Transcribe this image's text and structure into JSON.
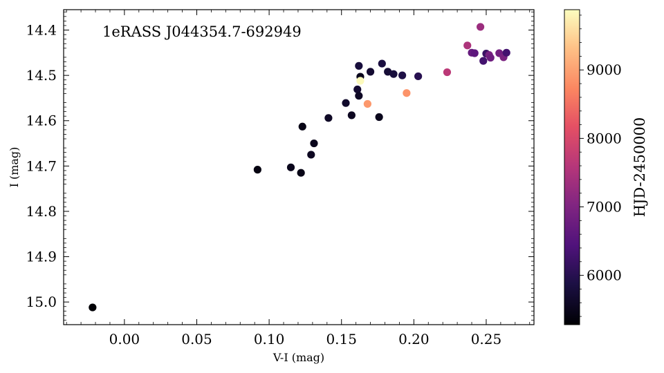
{
  "chart_data": {
    "type": "scatter",
    "title": "",
    "annotation": "1eRASS J044354.7-692949",
    "xlabel": "V-I (mag)",
    "ylabel": "I (mag)",
    "xlim": [
      -0.042,
      0.283
    ],
    "ylim": [
      15.05,
      14.355
    ],
    "y_inverted": true,
    "x_ticks": [
      0.0,
      0.05,
      0.1,
      0.15,
      0.2,
      0.25
    ],
    "x_tick_labels": [
      "0.00",
      "0.05",
      "0.10",
      "0.15",
      "0.20",
      "0.25"
    ],
    "y_ticks": [
      14.4,
      14.5,
      14.6,
      14.7,
      14.8,
      14.9,
      15.0
    ],
    "y_tick_labels": [
      "14.4",
      "14.5",
      "14.6",
      "14.7",
      "14.8",
      "14.9",
      "15.0"
    ],
    "grid": false,
    "colorbar": {
      "label": "HJD-2450000",
      "colormap": "magma",
      "range": [
        5280,
        9880
      ],
      "ticks": [
        6000,
        7000,
        8000,
        9000
      ],
      "tick_labels": [
        "6000",
        "7000",
        "8000",
        "9000"
      ]
    },
    "points": [
      {
        "x": -0.022,
        "y": 15.012,
        "c": 5300
      },
      {
        "x": 0.092,
        "y": 14.708,
        "c": 5400
      },
      {
        "x": 0.115,
        "y": 14.703,
        "c": 5500
      },
      {
        "x": 0.122,
        "y": 14.715,
        "c": 5450
      },
      {
        "x": 0.123,
        "y": 14.613,
        "c": 5450
      },
      {
        "x": 0.129,
        "y": 14.675,
        "c": 5550
      },
      {
        "x": 0.131,
        "y": 14.65,
        "c": 5500
      },
      {
        "x": 0.141,
        "y": 14.594,
        "c": 5600
      },
      {
        "x": 0.153,
        "y": 14.561,
        "c": 5650
      },
      {
        "x": 0.157,
        "y": 14.588,
        "c": 5550
      },
      {
        "x": 0.161,
        "y": 14.531,
        "c": 5700
      },
      {
        "x": 0.162,
        "y": 14.545,
        "c": 5600
      },
      {
        "x": 0.162,
        "y": 14.479,
        "c": 5800
      },
      {
        "x": 0.163,
        "y": 14.503,
        "c": 5500
      },
      {
        "x": 0.163,
        "y": 14.512,
        "c": 9850
      },
      {
        "x": 0.168,
        "y": 14.563,
        "c": 8900
      },
      {
        "x": 0.17,
        "y": 14.492,
        "c": 5700
      },
      {
        "x": 0.176,
        "y": 14.592,
        "c": 5500
      },
      {
        "x": 0.178,
        "y": 14.474,
        "c": 5850
      },
      {
        "x": 0.182,
        "y": 14.492,
        "c": 5750
      },
      {
        "x": 0.186,
        "y": 14.497,
        "c": 5800
      },
      {
        "x": 0.192,
        "y": 14.5,
        "c": 5900
      },
      {
        "x": 0.195,
        "y": 14.539,
        "c": 8850
      },
      {
        "x": 0.203,
        "y": 14.502,
        "c": 6000
      },
      {
        "x": 0.223,
        "y": 14.493,
        "c": 7650
      },
      {
        "x": 0.237,
        "y": 14.434,
        "c": 7500
      },
      {
        "x": 0.24,
        "y": 14.45,
        "c": 6700
      },
      {
        "x": 0.242,
        "y": 14.451,
        "c": 6600
      },
      {
        "x": 0.246,
        "y": 14.393,
        "c": 7300
      },
      {
        "x": 0.248,
        "y": 14.468,
        "c": 6300
      },
      {
        "x": 0.25,
        "y": 14.452,
        "c": 6200
      },
      {
        "x": 0.252,
        "y": 14.455,
        "c": 6900
      },
      {
        "x": 0.253,
        "y": 14.461,
        "c": 6800
      },
      {
        "x": 0.259,
        "y": 14.451,
        "c": 6850
      },
      {
        "x": 0.262,
        "y": 14.46,
        "c": 6950
      },
      {
        "x": 0.264,
        "y": 14.45,
        "c": 6300
      }
    ]
  }
}
